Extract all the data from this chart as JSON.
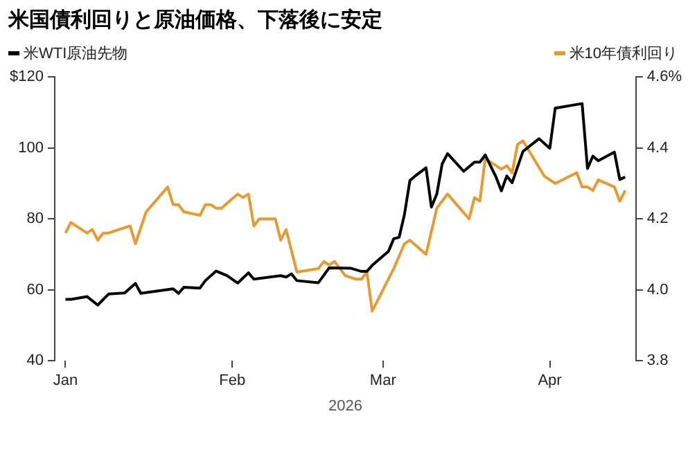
{
  "chart_data": {
    "type": "line",
    "title": "米国債利回りと原油価格、下落後に安定",
    "xlabel": "2026",
    "legend": "top",
    "marker": "none",
    "grid": false,
    "line_style": "solid",
    "xlim": [
      "2025-12-30",
      "2026-04-17"
    ],
    "xticks": [
      {
        "value": "2026-01-01",
        "label": "Jan"
      },
      {
        "value": "2026-02-01",
        "label": "Feb"
      },
      {
        "value": "2026-03-01",
        "label": "Mar"
      },
      {
        "value": "2026-04-01",
        "label": "Apr"
      }
    ],
    "ylim": [
      40,
      120
    ],
    "yticks": [
      40,
      60,
      80,
      100,
      {
        "value": 120,
        "label": "$120"
      }
    ],
    "y2lim": [
      3.8,
      4.6
    ],
    "y2ticks": [
      3.8,
      {
        "value": 4,
        "label": "4.0"
      },
      4.2,
      4.4,
      {
        "value": 4.6,
        "label": "4.6%"
      }
    ],
    "series": [
      {
        "name": "米WTI原油先物",
        "color": "#000000",
        "x": [
          "2026-01-01",
          "2026-01-02",
          "2026-01-05",
          "2026-01-07",
          "2026-01-09",
          "2026-01-12",
          "2026-01-14",
          "2026-01-15",
          "2026-01-21",
          "2026-01-22",
          "2026-01-23",
          "2026-01-26",
          "2026-01-27",
          "2026-01-29",
          "2026-01-31",
          "2026-02-02",
          "2026-02-04",
          "2026-02-05",
          "2026-02-10",
          "2026-02-11",
          "2026-02-12",
          "2026-02-13",
          "2026-02-17",
          "2026-02-19",
          "2026-02-23",
          "2026-02-25",
          "2026-02-26",
          "2026-02-27",
          "2026-03-02",
          "2026-03-03",
          "2026-03-04",
          "2026-03-05",
          "2026-03-06",
          "2026-03-07",
          "2026-03-09",
          "2026-03-10",
          "2026-03-11",
          "2026-03-12",
          "2026-03-13",
          "2026-03-16",
          "2026-03-18",
          "2026-03-19",
          "2026-03-20",
          "2026-03-22",
          "2026-03-23",
          "2026-03-24",
          "2026-03-25",
          "2026-03-27",
          "2026-03-30",
          "2026-04-01",
          "2026-04-02",
          "2026-04-07",
          "2026-04-08",
          "2026-04-09",
          "2026-04-10",
          "2026-04-13",
          "2026-04-14",
          "2026-04-15"
        ],
        "values": [
          57.3,
          57.3,
          58.1,
          55.7,
          58.8,
          59.1,
          61.8,
          59.0,
          60.3,
          59.0,
          60.7,
          60.5,
          62.6,
          65.3,
          64.0,
          61.9,
          64.8,
          63.0,
          64.0,
          63.6,
          64.5,
          62.6,
          62.0,
          66.2,
          66.1,
          65.2,
          65.2,
          66.9,
          70.8,
          74.4,
          74.8,
          81.3,
          90.8,
          92.1,
          94.4,
          83.3,
          87.0,
          95.5,
          98.4,
          93.4,
          96.0,
          96.0,
          98.0,
          91.8,
          87.9,
          92.1,
          90.2,
          99.0,
          102.6,
          99.9,
          111.2,
          112.5,
          94.2,
          97.7,
          96.4,
          98.8,
          91.1,
          91.8
        ]
      },
      {
        "name": "米10年債利回り",
        "color": "#e89a30",
        "axis": "y2",
        "x": [
          "2026-01-01",
          "2026-01-02",
          "2026-01-05",
          "2026-01-06",
          "2026-01-07",
          "2026-01-08",
          "2026-01-09",
          "2026-01-13",
          "2026-01-14",
          "2026-01-16",
          "2026-01-20",
          "2026-01-21",
          "2026-01-22",
          "2026-01-23",
          "2026-01-26",
          "2026-01-27",
          "2026-01-28",
          "2026-01-29",
          "2026-01-30",
          "2026-02-02",
          "2026-02-03",
          "2026-02-04",
          "2026-02-05",
          "2026-02-06",
          "2026-02-09",
          "2026-02-10",
          "2026-02-11",
          "2026-02-13",
          "2026-02-17",
          "2026-02-18",
          "2026-02-19",
          "2026-02-20",
          "2026-02-22",
          "2026-02-24",
          "2026-02-25",
          "2026-02-26",
          "2026-02-27",
          "2026-03-01",
          "2026-03-03",
          "2026-03-05",
          "2026-03-06",
          "2026-03-09",
          "2026-03-11",
          "2026-03-13",
          "2026-03-17",
          "2026-03-18",
          "2026-03-19",
          "2026-03-20",
          "2026-03-23",
          "2026-03-24",
          "2026-03-25",
          "2026-03-26",
          "2026-03-27",
          "2026-03-31",
          "2026-04-01",
          "2026-04-02",
          "2026-04-06",
          "2026-04-07",
          "2026-04-08",
          "2026-04-09",
          "2026-04-10",
          "2026-04-13",
          "2026-04-14",
          "2026-04-15"
        ],
        "values": [
          4.16,
          4.19,
          4.16,
          4.17,
          4.14,
          4.16,
          4.16,
          4.18,
          4.13,
          4.22,
          4.29,
          4.24,
          4.24,
          4.22,
          4.21,
          4.24,
          4.24,
          4.23,
          4.23,
          4.27,
          4.26,
          4.27,
          4.18,
          4.2,
          4.2,
          4.14,
          4.17,
          4.05,
          4.06,
          4.08,
          4.07,
          4.08,
          4.04,
          4.03,
          4.03,
          4.05,
          3.94,
          4.0,
          4.06,
          4.13,
          4.14,
          4.1,
          4.23,
          4.27,
          4.2,
          4.26,
          4.25,
          4.37,
          4.34,
          4.35,
          4.33,
          4.41,
          4.42,
          4.32,
          4.31,
          4.3,
          4.33,
          4.29,
          4.29,
          4.28,
          4.31,
          4.29,
          4.25,
          4.28
        ]
      }
    ]
  }
}
